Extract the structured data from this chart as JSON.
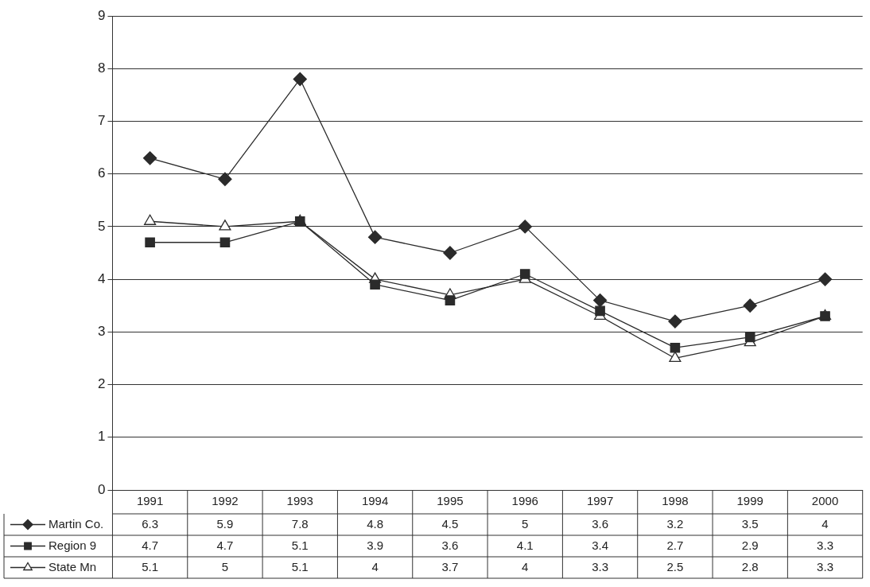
{
  "chart_data": {
    "type": "line",
    "categories": [
      "1991",
      "1992",
      "1993",
      "1994",
      "1995",
      "1996",
      "1997",
      "1998",
      "1999",
      "2000"
    ],
    "series": [
      {
        "name": "Martin Co.",
        "color": "#2b2b2b",
        "marker": "diamond",
        "values": [
          6.3,
          5.9,
          7.8,
          4.8,
          4.5,
          5,
          3.6,
          3.2,
          3.5,
          4
        ]
      },
      {
        "name": "Region 9",
        "color": "#2b2b2b",
        "marker": "square",
        "values": [
          4.7,
          4.7,
          5.1,
          3.9,
          3.6,
          4.1,
          3.4,
          2.7,
          2.9,
          3.3
        ]
      },
      {
        "name": "State Mn",
        "color": "#2b2b2b",
        "marker": "triangle",
        "values": [
          5.1,
          5,
          5.1,
          4,
          3.7,
          4,
          3.3,
          2.5,
          2.8,
          3.3
        ]
      }
    ],
    "ylim": [
      0,
      9
    ],
    "yticks": [
      0,
      1,
      2,
      3,
      4,
      5,
      6,
      7,
      8,
      9
    ],
    "grid": "y",
    "data_labels": true,
    "legend": "bottom",
    "line_style": "solid"
  }
}
